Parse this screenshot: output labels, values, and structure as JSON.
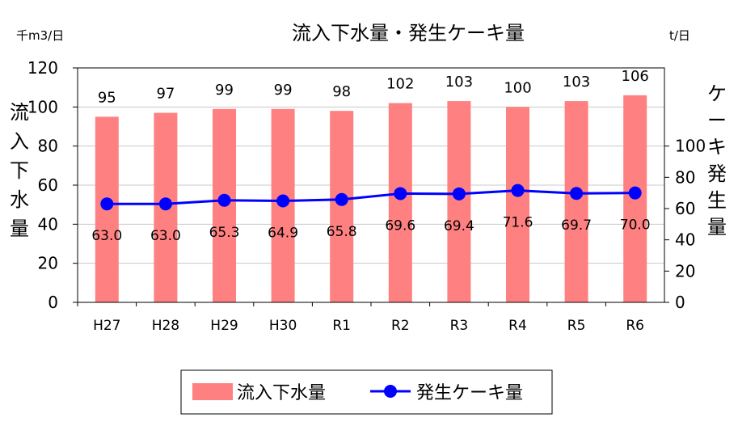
{
  "chart_data": {
    "type": "bar+line",
    "title": "流入下水量・発生ケーキ量",
    "categories": [
      "H27",
      "H28",
      "H29",
      "H30",
      "R1",
      "R2",
      "R3",
      "R4",
      "R5",
      "R6"
    ],
    "series": [
      {
        "name": "流入下水量",
        "type": "bar",
        "axis": "left",
        "color": "#ff8080",
        "values": [
          95,
          97,
          99,
          99,
          98,
          102,
          103,
          100,
          103,
          106
        ],
        "labels": [
          "95",
          "97",
          "99",
          "99",
          "98",
          "102",
          "103",
          "100",
          "103",
          "106"
        ]
      },
      {
        "name": "発生ケーキ量",
        "type": "line",
        "axis": "right",
        "color": "#0000ff",
        "values": [
          63.0,
          63.0,
          65.3,
          64.9,
          65.8,
          69.6,
          69.4,
          71.6,
          69.7,
          70.0
        ],
        "labels": [
          "63.0",
          "63.0",
          "65.3",
          "64.9",
          "65.8",
          "69.6",
          "69.4",
          "71.6",
          "69.7",
          "70.0"
        ]
      }
    ],
    "y_left": {
      "label": "流入下水量",
      "unit": "千m3/日",
      "lim": [
        0,
        120
      ],
      "ticks": [
        "0",
        "20",
        "40",
        "60",
        "80",
        "100",
        "120"
      ]
    },
    "y_right": {
      "label": "ケーキ発生量",
      "unit": "t/日",
      "lim": [
        0,
        150
      ],
      "ticks": [
        "0",
        "20",
        "40",
        "60",
        "80",
        "100"
      ]
    },
    "grid": true,
    "legend": "bottom"
  }
}
